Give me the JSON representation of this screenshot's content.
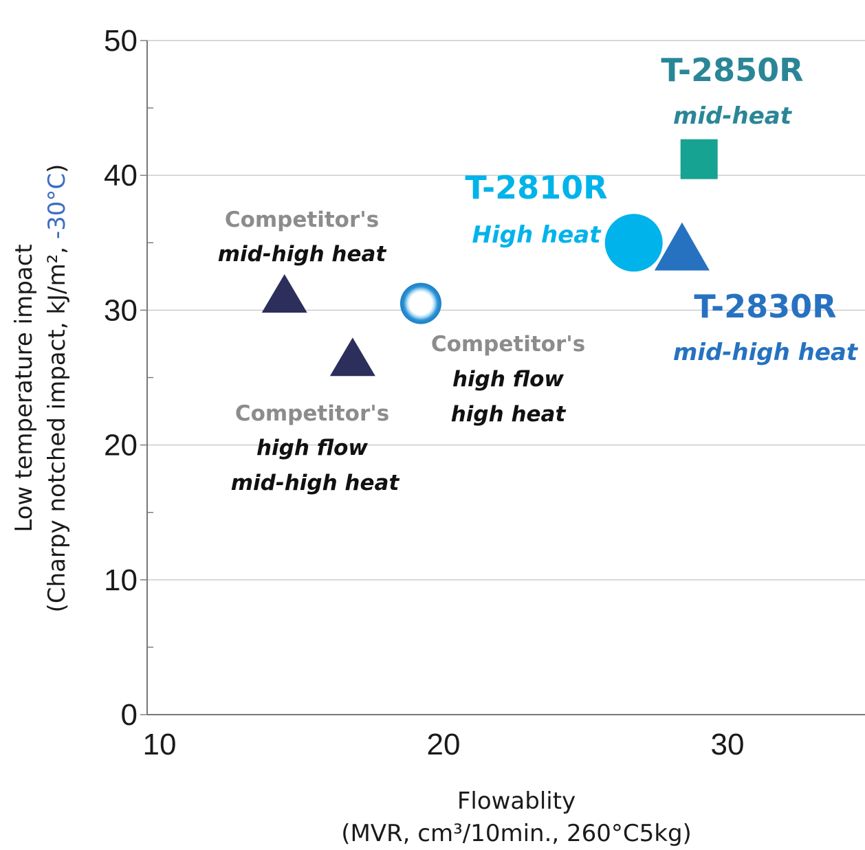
{
  "chart_data": {
    "type": "scatter",
    "xlabel": "Flowablity",
    "xlabel_line2": "(MVR, cm³/10min., 260°C5kg)",
    "ylabel": "Low temperature impact",
    "ylabel_line2_prefix": "(Charpy notched impact, kJ/m², ",
    "ylabel_line2_highlight": "-30°C",
    "ylabel_line2_suffix": ")",
    "xlim": [
      10,
      35
    ],
    "ylim": [
      0,
      50
    ],
    "x_ticks": [
      "10",
      "20",
      "30"
    ],
    "y_ticks": [
      "0",
      "10",
      "20",
      "30",
      "40",
      "50"
    ],
    "grid": true,
    "points": [
      {
        "name": "T-2850R",
        "subtitle": "mid-heat",
        "x": 29,
        "y": 41.2,
        "marker": "square",
        "color": "#16a391"
      },
      {
        "name": "T-2810R",
        "subtitle": "High heat",
        "x": 26.7,
        "y": 35,
        "marker": "circle",
        "color": "#00b3ea"
      },
      {
        "name": "T-2830R",
        "subtitle": "mid-high heat",
        "x": 28.4,
        "y": 34.3,
        "marker": "triangle",
        "color": "#2672c0"
      },
      {
        "name": "Competitor's",
        "subtitle": "mid-high heat",
        "x": 14.4,
        "y": 30.9,
        "marker": "triangle",
        "color": "#2c2e5c"
      },
      {
        "name": "Competitor's",
        "subtitle": "high flow mid-high heat",
        "x": 16.8,
        "y": 26.2,
        "marker": "triangle",
        "color": "#2c2e5c"
      },
      {
        "name": "Competitor's",
        "subtitle": "high flow high heat",
        "x": 19.2,
        "y": 30.5,
        "marker": "ring",
        "color": "#2a93d6"
      }
    ]
  },
  "annotations": {
    "t2850_name": "T-2850R",
    "t2850_sub": "mid-heat",
    "t2810_name": "T-2810R",
    "t2810_sub": "High heat",
    "t2830_name": "T-2830R",
    "t2830_sub": "mid-high heat",
    "comp1_line1": "Competitor's",
    "comp1_line2": "mid-high heat",
    "comp2_line1": "Competitor's",
    "comp2_line2": "high flow",
    "comp2_line3": "mid-high heat",
    "comp3_line1": "Competitor's",
    "comp3_line2": "high flow",
    "comp3_line3": "high heat"
  },
  "colors": {
    "t2850": "#2a8697",
    "t2810": "#00b3ea",
    "t2830": "#2672c0",
    "competitor": "#2c2e5c",
    "ring": "#2a93d6",
    "highlight": "#3b6ec0"
  }
}
